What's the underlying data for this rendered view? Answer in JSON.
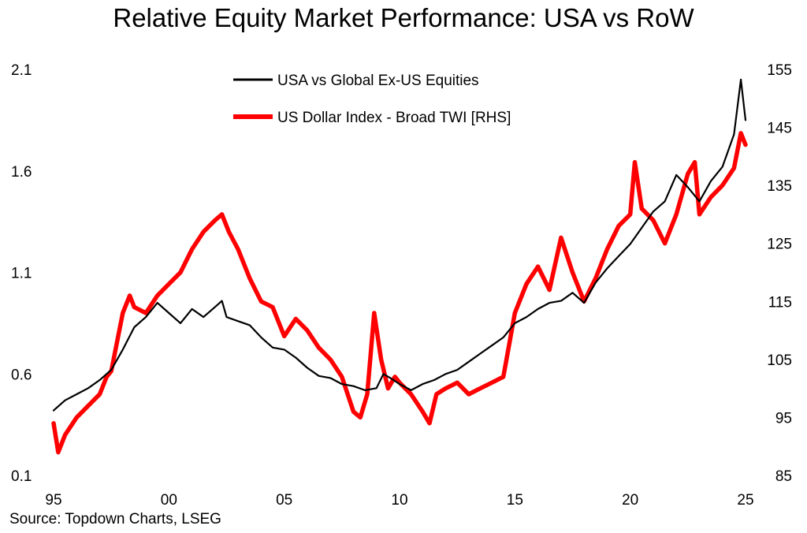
{
  "chart_data": {
    "type": "line",
    "title": "Relative Equity Market Performance: USA vs RoW",
    "source": "Source: Topdown Charts, LSEG",
    "x_axis": {
      "ticks": [
        "95",
        "00",
        "05",
        "10",
        "15",
        "20",
        "25"
      ],
      "tick_values": [
        1995,
        2000,
        2005,
        2010,
        2015,
        2020,
        2025
      ],
      "range": [
        1995,
        2025
      ]
    },
    "y_left": {
      "ticks": [
        "0.1",
        "0.6",
        "1.1",
        "1.6",
        "2.1"
      ],
      "tick_values": [
        0.1,
        0.6,
        1.1,
        1.6,
        2.1
      ],
      "range": [
        0.1,
        2.1
      ]
    },
    "y_right": {
      "ticks": [
        "85",
        "95",
        "105",
        "115",
        "125",
        "135",
        "145",
        "155"
      ],
      "tick_values": [
        85,
        95,
        105,
        115,
        125,
        135,
        145,
        155
      ],
      "range": [
        85,
        155
      ]
    },
    "legend_position": "top-center",
    "grid": false,
    "series": [
      {
        "name": "USA vs Global Ex-US Equities",
        "axis": "left",
        "color": "#000000",
        "x": [
          1995.0,
          1995.5,
          1996.0,
          1996.5,
          1997.0,
          1997.5,
          1998.0,
          1998.5,
          1999.0,
          1999.5,
          2000.0,
          2000.5,
          2001.0,
          2001.5,
          2002.0,
          2002.3,
          2002.5,
          2003.0,
          2003.5,
          2004.0,
          2004.5,
          2005.0,
          2005.5,
          2006.0,
          2006.5,
          2007.0,
          2007.5,
          2008.0,
          2008.5,
          2009.0,
          2009.3,
          2009.6,
          2010.0,
          2010.5,
          2011.0,
          2011.5,
          2012.0,
          2012.5,
          2013.0,
          2013.5,
          2014.0,
          2014.5,
          2015.0,
          2015.5,
          2016.0,
          2016.5,
          2017.0,
          2017.5,
          2018.0,
          2018.5,
          2019.0,
          2019.5,
          2020.0,
          2020.5,
          2021.0,
          2021.5,
          2022.0,
          2022.5,
          2023.0,
          2023.5,
          2024.0,
          2024.5,
          2024.8,
          2025.0
        ],
        "values": [
          0.42,
          0.47,
          0.5,
          0.53,
          0.57,
          0.62,
          0.72,
          0.83,
          0.88,
          0.95,
          0.9,
          0.85,
          0.92,
          0.88,
          0.93,
          0.96,
          0.88,
          0.86,
          0.84,
          0.78,
          0.73,
          0.72,
          0.68,
          0.63,
          0.59,
          0.58,
          0.55,
          0.54,
          0.52,
          0.53,
          0.6,
          0.58,
          0.55,
          0.52,
          0.55,
          0.57,
          0.6,
          0.62,
          0.66,
          0.7,
          0.74,
          0.78,
          0.85,
          0.88,
          0.92,
          0.95,
          0.96,
          1.0,
          0.95,
          1.05,
          1.12,
          1.18,
          1.24,
          1.32,
          1.4,
          1.45,
          1.58,
          1.52,
          1.45,
          1.55,
          1.62,
          1.78,
          2.05,
          1.85
        ]
      },
      {
        "name": "US Dollar Index - Broad TWI [RHS]",
        "axis": "right",
        "color": "#ff0000",
        "x": [
          1995.0,
          1995.2,
          1995.5,
          1996.0,
          1996.5,
          1997.0,
          1997.3,
          1997.5,
          1998.0,
          1998.3,
          1998.5,
          1999.0,
          1999.5,
          2000.0,
          2000.5,
          2001.0,
          2001.5,
          2002.0,
          2002.3,
          2002.6,
          2003.0,
          2003.5,
          2004.0,
          2004.5,
          2005.0,
          2005.5,
          2006.0,
          2006.5,
          2007.0,
          2007.5,
          2008.0,
          2008.3,
          2008.6,
          2008.9,
          2009.2,
          2009.5,
          2009.8,
          2010.0,
          2010.5,
          2011.0,
          2011.3,
          2011.6,
          2012.0,
          2012.5,
          2013.0,
          2013.5,
          2014.0,
          2014.5,
          2015.0,
          2015.5,
          2016.0,
          2016.5,
          2017.0,
          2017.5,
          2018.0,
          2018.5,
          2019.0,
          2019.5,
          2020.0,
          2020.2,
          2020.5,
          2021.0,
          2021.5,
          2022.0,
          2022.5,
          2022.8,
          2023.0,
          2023.5,
          2024.0,
          2024.5,
          2024.8,
          2025.0
        ],
        "values": [
          94,
          89,
          92,
          95,
          97,
          99,
          102,
          103,
          113,
          116,
          114,
          113,
          116,
          118,
          120,
          124,
          127,
          129,
          130,
          127,
          124,
          119,
          115,
          114,
          109,
          112,
          110,
          107,
          105,
          102,
          96,
          95,
          99,
          113,
          105,
          100,
          102,
          101,
          99,
          96,
          94,
          99,
          100,
          101,
          99,
          100,
          101,
          102,
          113,
          118,
          121,
          117,
          126,
          120,
          115,
          119,
          124,
          128,
          130,
          139,
          131,
          129,
          125,
          130,
          137,
          139,
          130,
          133,
          135,
          138,
          144,
          142
        ]
      }
    ]
  }
}
